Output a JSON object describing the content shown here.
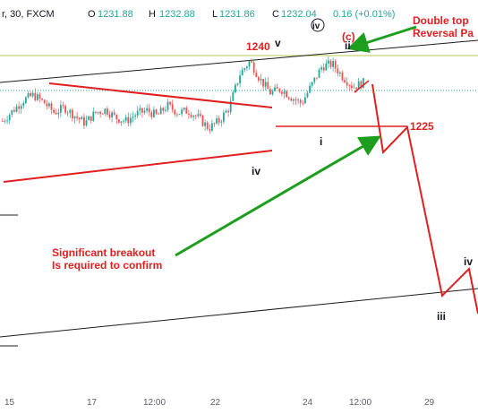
{
  "header": {
    "symbol_fragment": "r, 30, FXCM",
    "open_label": "O",
    "open": "1231.88",
    "high_label": "H",
    "high": "1232.88",
    "low_label": "L",
    "low": "1231.86",
    "close_label": "C",
    "close": "1232.04",
    "change": "0.16 (+0.01%)"
  },
  "chart_data": {
    "type": "candlestick",
    "title": "",
    "interval": "30",
    "source": "FXCM",
    "x_ticks": [
      "15",
      "17",
      "12:00",
      "22",
      "24",
      "12:00",
      "29"
    ],
    "annotations": [
      {
        "text": "1240",
        "color": "#e02020"
      },
      {
        "text": "v",
        "color": "#131722"
      },
      {
        "text": "iv",
        "color": "#131722",
        "circled": true
      },
      {
        "text": "(c)",
        "color": "#e02020"
      },
      {
        "text": "ii",
        "color": "#131722"
      },
      {
        "text": "i",
        "color": "#131722"
      },
      {
        "text": "iv",
        "color": "#131722"
      },
      {
        "text": "1225",
        "color": "#e02020"
      },
      {
        "text": "iv",
        "color": "#131722"
      },
      {
        "text": "iii",
        "color": "#131722"
      }
    ],
    "notes": [
      {
        "lines": [
          "Double top",
          "Reversal Pa"
        ],
        "color": "#e02020"
      },
      {
        "lines": [
          "Significant breakout",
          "Is required to confirm"
        ],
        "color": "#e02020"
      }
    ],
    "close_price_path": [
      1234.5,
      1235.5,
      1236.5,
      1237.0,
      1236.3,
      1235.3,
      1235.8,
      1235.0,
      1234.3,
      1235.3,
      1235.6,
      1234.8,
      1234.5,
      1235.2,
      1235.5,
      1235.0,
      1236.0,
      1235.3,
      1235.5,
      1234.8,
      1233.8,
      1234.5,
      1235.8,
      1239.0,
      1240.3,
      1238.5,
      1237.2,
      1237.6,
      1236.8,
      1236.2,
      1238.0,
      1239.8,
      1240.0,
      1238.8,
      1237.8,
      1238.2
    ]
  },
  "colors": {
    "up_candle": "#26a69a",
    "down_candle": "#ef5350",
    "annotation_red": "#e02020",
    "arrow_green": "#1e9e1e",
    "resistance_line": "#c8d27a",
    "price_line": "#26a69a"
  }
}
